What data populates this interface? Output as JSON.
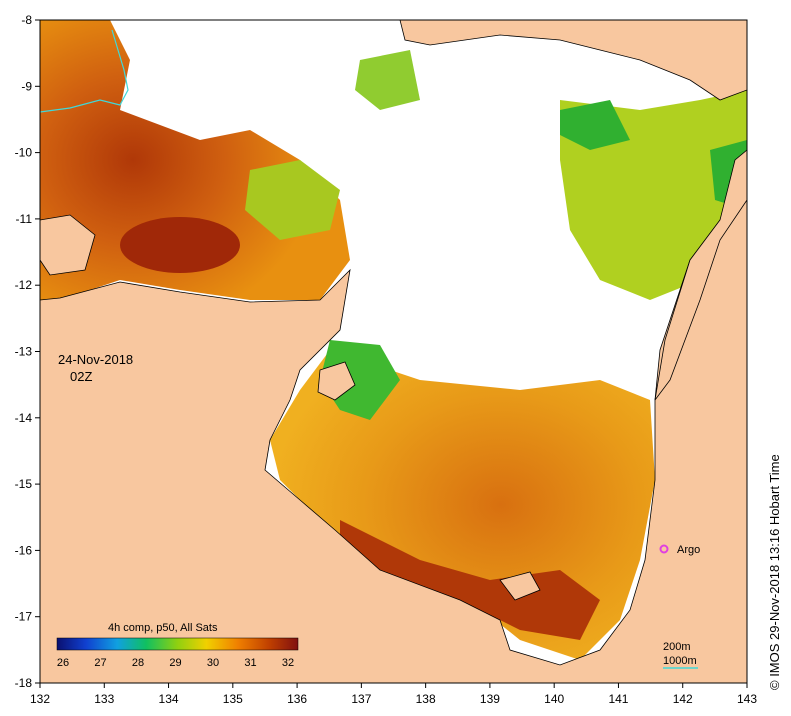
{
  "map": {
    "date_label": "24-Nov-2018",
    "time_label": "02Z",
    "credit": "© IMOS 29-Nov-2018 13:16 Hobart Time",
    "x_ticks": [
      "132",
      "133",
      "134",
      "135",
      "136",
      "137",
      "138",
      "139",
      "140",
      "141",
      "142",
      "143"
    ],
    "y_ticks": [
      "-8",
      "-9",
      "-10",
      "-11",
      "-12",
      "-13",
      "-14",
      "-15",
      "-16",
      "-17",
      "-18"
    ],
    "argo_label": "Argo",
    "contour_legend": [
      "200m",
      "1000m"
    ]
  },
  "colorbar": {
    "title": "4h comp, p50, All Sats",
    "ticks": [
      "26",
      "27",
      "28",
      "29",
      "30",
      "31",
      "32"
    ]
  },
  "colors": {
    "land": "#f8c79f",
    "cloud": "#ffffff",
    "argo": "#e040e0",
    "contour_1000": "#40d8d8"
  }
}
